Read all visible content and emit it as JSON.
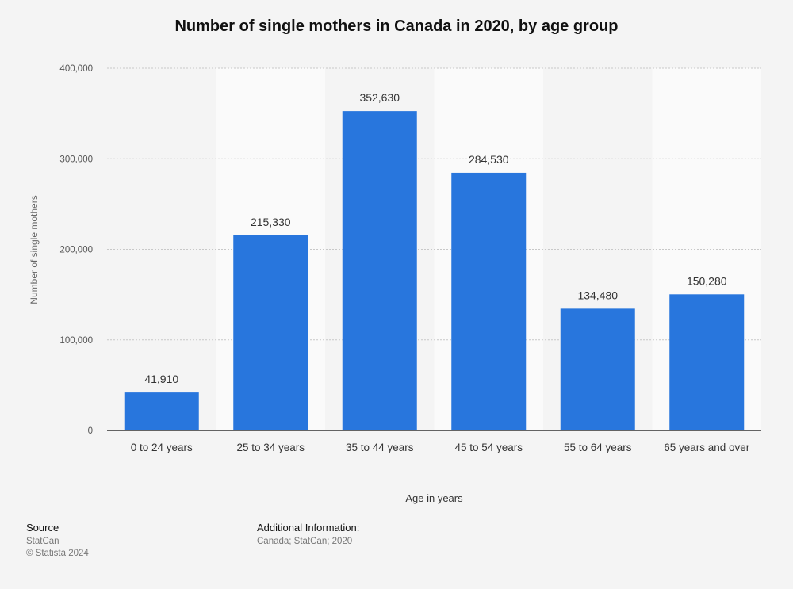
{
  "chart_data": {
    "type": "bar",
    "title": "Number of single mothers in Canada in 2020, by age group",
    "xlabel": "Age in years",
    "ylabel": "Number of single mothers",
    "categories": [
      "0 to 24 years",
      "25 to 34 years",
      "35 to 44 years",
      "45 to 54 years",
      "55 to 64 years",
      "65 years and over"
    ],
    "values": [
      41910,
      215330,
      352630,
      284530,
      134480,
      150280
    ],
    "value_labels": [
      "41,910",
      "215,330",
      "352,630",
      "284,530",
      "134,480",
      "150,280"
    ],
    "ylim": [
      0,
      400000
    ],
    "yticks": [
      0,
      100000,
      200000,
      300000,
      400000
    ],
    "ytick_labels": [
      "0",
      "100,000",
      "200,000",
      "300,000",
      "400,000"
    ],
    "grid": true,
    "bar_color": "#2876dd"
  },
  "footer": {
    "source_heading": "Source",
    "source_name": "StatCan",
    "copyright": "© Statista 2024",
    "info_heading": "Additional Information:",
    "info_text": "Canada; StatCan; 2020"
  }
}
